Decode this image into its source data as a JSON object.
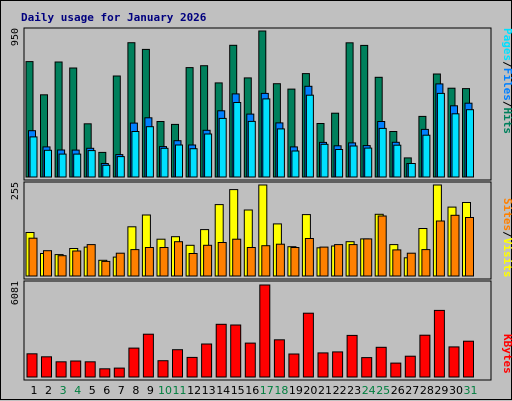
{
  "title": "Daily usage for January 2026",
  "colors": {
    "background": "#c0c0c0",
    "plot": "#bfbfbf",
    "title": "#00007f",
    "weekend_label": "#007f3f",
    "weekday_label": "#000000",
    "hits": "#00805c",
    "files": "#0080ff",
    "pages": "#00e0ff",
    "visits": "#ff8000",
    "sites": "#ffff00",
    "kbytes": "#ff0000"
  },
  "legend": {
    "hits_pages": {
      "pages": "Pages",
      "sep1": "/",
      "files": "Files",
      "sep2": "/",
      "hits": "Hits"
    },
    "visits_sites": {
      "sites": "Sites",
      "sep": "/",
      "visits": "Visits"
    },
    "kbytes": {
      "kbytes": "KBytes"
    }
  },
  "chart_data": [
    {
      "type": "bar",
      "name": "hits-files-pages",
      "axis_max_label": "950",
      "ylim": [
        0,
        950
      ],
      "categories": [
        "1",
        "2",
        "3",
        "4",
        "5",
        "6",
        "7",
        "8",
        "9",
        "10",
        "11",
        "12",
        "13",
        "14",
        "15",
        "16",
        "17",
        "18",
        "19",
        "20",
        "21",
        "22",
        "23",
        "24",
        "25",
        "26",
        "27",
        "28",
        "29",
        "30",
        "31"
      ],
      "weekend": [
        3,
        4,
        10,
        11,
        17,
        18,
        24,
        25,
        31
      ],
      "series": [
        {
          "name": "Hits",
          "values": [
            751,
            535,
            748,
            709,
            346,
            160,
            657,
            874,
            830,
            361,
            342,
            712,
            724,
            612,
            857,
            645,
            950,
            607,
            572,
            673,
            348,
            415,
            873,
            856,
            649,
            296,
            124,
            394,
            670,
            578,
            575
          ]
        },
        {
          "name": "Files",
          "values": [
            301,
            196,
            176,
            175,
            187,
            88,
            146,
            351,
            385,
            198,
            236,
            208,
            304,
            431,
            541,
            409,
            544,
            352,
            196,
            590,
            225,
            203,
            222,
            204,
            361,
            226,
            88,
            310,
            606,
            463,
            480
          ]
        },
        {
          "name": "Pages",
          "values": [
            261,
            174,
            149,
            149,
            172,
            76,
            133,
            296,
            327,
            187,
            208,
            184,
            280,
            381,
            485,
            362,
            508,
            313,
            169,
            532,
            213,
            179,
            202,
            188,
            316,
            207,
            88,
            272,
            544,
            411,
            438
          ]
        }
      ]
    },
    {
      "type": "bar",
      "name": "visits-sites",
      "axis_max_label": "255",
      "ylim": [
        0,
        255
      ],
      "categories": [
        "1",
        "2",
        "3",
        "4",
        "5",
        "6",
        "7",
        "8",
        "9",
        "10",
        "11",
        "12",
        "13",
        "14",
        "15",
        "16",
        "17",
        "18",
        "19",
        "20",
        "21",
        "22",
        "23",
        "24",
        "25",
        "26",
        "27",
        "28",
        "29",
        "30",
        "31"
      ],
      "series": [
        {
          "name": "Sites",
          "values": [
            122,
            63,
            60,
            77,
            81,
            44,
            53,
            138,
            171,
            103,
            110,
            86,
            130,
            200,
            242,
            185,
            255,
            146,
            82,
            172,
            79,
            84,
            96,
            104,
            173,
            88,
            51,
            133,
            255,
            193,
            206
          ]
        },
        {
          "name": "Visits",
          "values": [
            106,
            71,
            57,
            70,
            88,
            41,
            64,
            74,
            80,
            80,
            96,
            63,
            86,
            94,
            103,
            80,
            85,
            89,
            80,
            105,
            81,
            88,
            88,
            104,
            168,
            73,
            64,
            74,
            154,
            170,
            164
          ]
        }
      ]
    },
    {
      "type": "bar",
      "name": "kbytes",
      "axis_max_label": "6081",
      "ylim": [
        0,
        6081
      ],
      "categories": [
        "1",
        "2",
        "3",
        "4",
        "5",
        "6",
        "7",
        "8",
        "9",
        "10",
        "11",
        "12",
        "13",
        "14",
        "15",
        "16",
        "17",
        "18",
        "19",
        "20",
        "21",
        "22",
        "23",
        "24",
        "25",
        "26",
        "27",
        "28",
        "29",
        "30",
        "31"
      ],
      "series": [
        {
          "name": "KBytes",
          "values": [
            1532,
            1333,
            1004,
            1059,
            1004,
            539,
            591,
            1911,
            2828,
            1075,
            1804,
            1296,
            2182,
            3484,
            3436,
            2240,
            6081,
            2457,
            1523,
            4220,
            1590,
            1660,
            2749,
            1282,
            1961,
            922,
            1375,
            2765,
            4404,
            1990,
            2365
          ]
        }
      ]
    }
  ]
}
